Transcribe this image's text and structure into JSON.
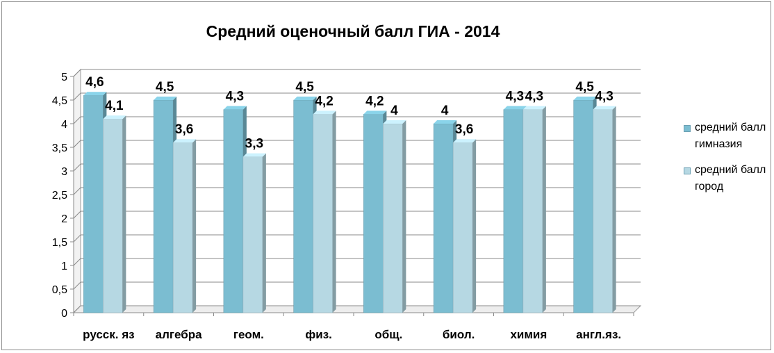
{
  "chart_data": {
    "type": "bar",
    "title": "Средний оценочный балл ГИА - 2014",
    "categories": [
      "русск. яз",
      "алгебра",
      "геом.",
      "физ.",
      "общ.",
      "биол.",
      "химия",
      "англ.яз."
    ],
    "series": [
      {
        "name": "средний балл гимназия",
        "values": [
          4.6,
          4.5,
          4.3,
          4.5,
          4.2,
          4.0,
          4.3,
          4.5
        ],
        "labels": [
          "4,6",
          "4,5",
          "4,3",
          "4,5",
          "4,2",
          "4",
          "4,3",
          "4,5"
        ],
        "color": "#7bbdd1"
      },
      {
        "name": "средний балл город",
        "values": [
          4.1,
          3.6,
          3.3,
          4.2,
          4.0,
          3.6,
          4.3,
          4.3
        ],
        "labels": [
          "4,1",
          "3,6",
          "3,3",
          "4,2",
          "4",
          "3,6",
          "4,3",
          "4,3"
        ],
        "color": "#b6d8e3"
      }
    ],
    "ylim": [
      0,
      5
    ],
    "yticks": [
      "0",
      "0,5",
      "1",
      "1,5",
      "2",
      "2,5",
      "3",
      "3,5",
      "4",
      "4,5",
      "5"
    ],
    "grid": true,
    "legend_position": "right",
    "style": "3d-clustered-column"
  }
}
